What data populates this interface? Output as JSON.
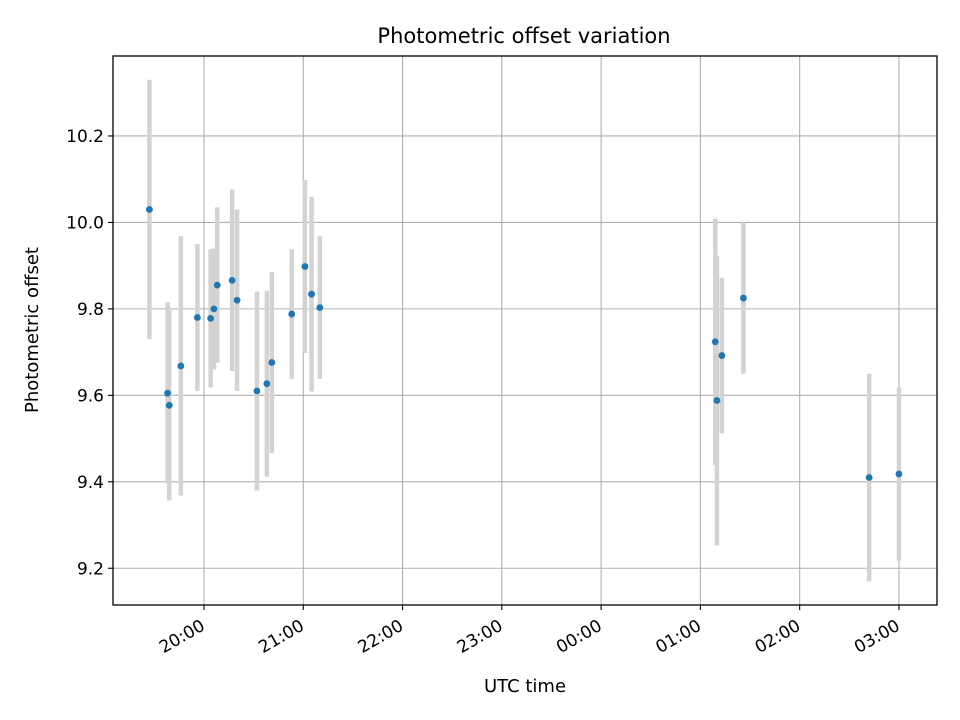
{
  "chart_data": {
    "type": "scatter",
    "title": "Photometric offset variation",
    "xlabel": "UTC time",
    "ylabel": "Photometric offset",
    "x_axis": {
      "kind": "time",
      "range": [
        "19:05",
        "03:23"
      ],
      "ticks": [
        "20:00",
        "21:00",
        "22:00",
        "23:00",
        "00:00",
        "01:00",
        "02:00",
        "03:00"
      ],
      "tick_label_rotation": "30 degrees"
    },
    "y_axis": {
      "range": [
        9.115,
        10.385
      ],
      "ticks": [
        "9.2",
        "9.4",
        "9.6",
        "9.8",
        "10.0",
        "10.2"
      ]
    },
    "grid": true,
    "legend": "none",
    "marker_color": "#1f77b4",
    "errorbar_color": "#d3d3d3",
    "points": [
      {
        "x": "19:27",
        "y": 10.03,
        "err": 0.3
      },
      {
        "x": "19:38",
        "y": 9.605,
        "err": 0.21
      },
      {
        "x": "19:39",
        "y": 9.577,
        "err": 0.22
      },
      {
        "x": "19:46",
        "y": 9.668,
        "err": 0.3
      },
      {
        "x": "19:56",
        "y": 9.78,
        "err": 0.17
      },
      {
        "x": "20:04",
        "y": 9.778,
        "err": 0.16
      },
      {
        "x": "20:06",
        "y": 9.8,
        "err": 0.14
      },
      {
        "x": "20:08",
        "y": 9.855,
        "err": 0.18
      },
      {
        "x": "20:17",
        "y": 9.866,
        "err": 0.21
      },
      {
        "x": "20:20",
        "y": 9.82,
        "err": 0.21
      },
      {
        "x": "20:32",
        "y": 9.61,
        "err": 0.23
      },
      {
        "x": "20:38",
        "y": 9.627,
        "err": 0.215
      },
      {
        "x": "20:41",
        "y": 9.676,
        "err": 0.21
      },
      {
        "x": "20:53",
        "y": 9.788,
        "err": 0.15
      },
      {
        "x": "21:01",
        "y": 9.898,
        "err": 0.2
      },
      {
        "x": "21:05",
        "y": 9.834,
        "err": 0.225
      },
      {
        "x": "21:10",
        "y": 9.803,
        "err": 0.165
      },
      {
        "x": "01:09",
        "y": 9.724,
        "err": 0.285
      },
      {
        "x": "01:10",
        "y": 9.588,
        "err": 0.335
      },
      {
        "x": "01:13",
        "y": 9.692,
        "err": 0.18
      },
      {
        "x": "01:26",
        "y": 9.825,
        "err": 0.175
      },
      {
        "x": "02:42",
        "y": 9.41,
        "err": 0.24
      },
      {
        "x": "03:00",
        "y": 9.418,
        "err": 0.2
      }
    ]
  }
}
